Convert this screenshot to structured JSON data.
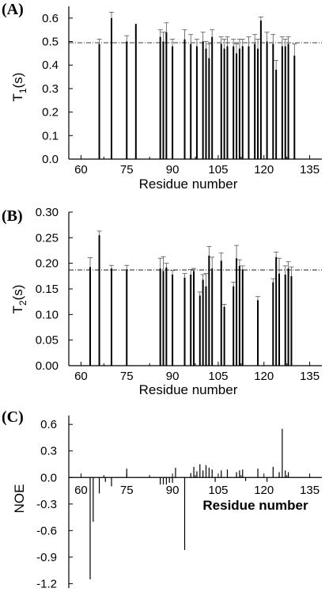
{
  "chart_data": [
    {
      "type": "bar",
      "panel_label": "(A)",
      "xlabel": "Residue number",
      "ylabel": "T1(s)",
      "ylabel_main": "T",
      "ylabel_sub": "1",
      "ylabel_unit": "(s)",
      "xlim": [
        56,
        139
      ],
      "ylim": [
        0,
        0.65
      ],
      "xticks": [
        60,
        75,
        90,
        105,
        120,
        135
      ],
      "yticks": [
        0.0,
        0.1,
        0.2,
        0.3,
        0.4,
        0.5,
        0.6
      ],
      "ytick_labels": [
        "0.0",
        "0.1",
        "0.2",
        "0.3",
        "0.4",
        "0.5",
        "0.6"
      ],
      "reference_line": 0.495,
      "error_bars": true,
      "x": [
        66,
        70,
        75,
        78,
        86,
        87,
        88,
        90,
        94,
        96,
        98,
        100,
        101,
        102,
        103,
        106,
        107,
        108,
        110,
        111,
        112,
        113,
        115,
        117,
        118,
        119,
        121,
        123,
        124,
        126,
        127,
        128,
        130
      ],
      "values": [
        0.49,
        0.6,
        0.5,
        0.575,
        0.52,
        0.5,
        0.54,
        0.48,
        0.51,
        0.49,
        0.48,
        0.5,
        0.47,
        0.43,
        0.52,
        0.49,
        0.47,
        0.48,
        0.48,
        0.45,
        0.47,
        0.48,
        0.48,
        0.49,
        0.47,
        0.59,
        0.5,
        0.49,
        0.38,
        0.48,
        0.48,
        0.49,
        0.44
      ],
      "errors": [
        0.02,
        0.025,
        0.025,
        0.0,
        0.03,
        0.04,
        0.04,
        0.03,
        0.04,
        0.04,
        0.03,
        0.04,
        0.03,
        0.06,
        0.03,
        0.03,
        0.04,
        0.04,
        0.03,
        0.04,
        0.04,
        0.03,
        0.04,
        0.04,
        0.04,
        0.015,
        0.04,
        0.04,
        0.04,
        0.04,
        0.03,
        0.03,
        0.05
      ]
    },
    {
      "type": "bar",
      "panel_label": "(B)",
      "xlabel": "Residue number",
      "ylabel": "T2(s)",
      "ylabel_main": "T",
      "ylabel_sub": "2",
      "ylabel_unit": "(s)",
      "xlim": [
        56,
        139
      ],
      "ylim": [
        0,
        0.3
      ],
      "xticks": [
        60,
        75,
        90,
        105,
        120,
        135
      ],
      "yticks": [
        0.0,
        0.05,
        0.1,
        0.15,
        0.2,
        0.25,
        0.3
      ],
      "ytick_labels": [
        "0.00",
        "0.05",
        "0.10",
        "0.15",
        "0.20",
        "0.25",
        "0.30"
      ],
      "reference_line": 0.187,
      "error_bars": true,
      "x": [
        63,
        66,
        70,
        75,
        86,
        87,
        88,
        90,
        94,
        96,
        97,
        99,
        100,
        101,
        102,
        103,
        106,
        107,
        110,
        111,
        112,
        113,
        118,
        123,
        124,
        125,
        127,
        128,
        129
      ],
      "values": [
        0.193,
        0.255,
        0.19,
        0.188,
        0.19,
        0.185,
        0.192,
        0.178,
        0.172,
        0.178,
        0.185,
        0.137,
        0.168,
        0.155,
        0.215,
        0.19,
        0.205,
        0.115,
        0.155,
        0.21,
        0.195,
        0.188,
        0.128,
        0.163,
        0.212,
        0.18,
        0.178,
        0.19,
        0.175
      ],
      "errors": [
        0.018,
        0.008,
        0.006,
        0.008,
        0.02,
        0.028,
        0.008,
        0.008,
        0.008,
        0.01,
        0.005,
        0.007,
        0.01,
        0.025,
        0.018,
        0.022,
        0.015,
        0.005,
        0.008,
        0.025,
        0.012,
        0.007,
        0.007,
        0.007,
        0.01,
        0.03,
        0.017,
        0.013,
        0.018
      ]
    },
    {
      "type": "bar",
      "panel_label": "(C)",
      "xlabel": "Residue number",
      "ylabel": "NOE",
      "xlim": [
        56,
        139
      ],
      "ylim": [
        -1.25,
        0.7
      ],
      "xticks": [
        60,
        75,
        90,
        105,
        120,
        135
      ],
      "yticks": [
        0.6,
        0.3,
        0.0,
        -0.3,
        -0.6,
        -0.9,
        -1.2
      ],
      "ytick_labels": [
        "0.6",
        "0.3",
        "0.0",
        "-0.3",
        "-0.6",
        "-0.9",
        "-1.2"
      ],
      "error_bars": false,
      "x": [
        63,
        64,
        66,
        68,
        70,
        75,
        86,
        87,
        88,
        89,
        90,
        91,
        94,
        96,
        97,
        98,
        99,
        100,
        101,
        102,
        103,
        104,
        106,
        108,
        111,
        112,
        113,
        114,
        118,
        121,
        123,
        125,
        126,
        127,
        128
      ],
      "values": [
        -1.15,
        -0.5,
        -0.18,
        -0.05,
        -0.1,
        0.1,
        -0.08,
        -0.08,
        -0.08,
        -0.06,
        -0.06,
        0.11,
        -0.82,
        0.05,
        0.12,
        0.07,
        0.15,
        0.08,
        0.14,
        0.11,
        0.09,
        -0.05,
        0.08,
        0.09,
        0.06,
        0.08,
        0.09,
        -0.04,
        0.1,
        -0.05,
        0.12,
        0.06,
        0.55,
        0.08,
        0.06
      ]
    }
  ]
}
